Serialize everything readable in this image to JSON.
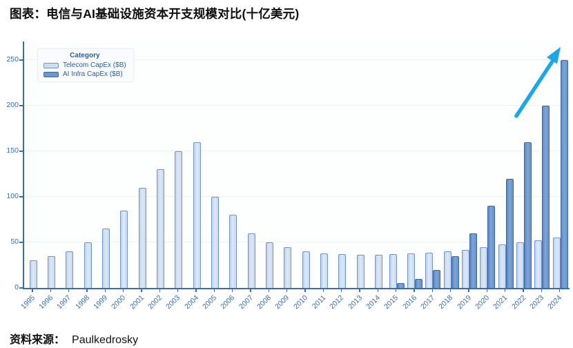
{
  "title": "图表：电信与AI基础设施资本开支规模对比(十亿美元)",
  "source": {
    "label": "资料来源：",
    "value": "Paulkedrosky"
  },
  "legend": {
    "title": "Category"
  },
  "chart_data": {
    "type": "bar",
    "title": "电信与AI基础设施资本开支规模对比(十亿美元)",
    "xlabel": "",
    "ylabel": "",
    "ylim": [
      0,
      250
    ],
    "yticks": [
      0,
      50,
      100,
      150,
      200,
      250
    ],
    "grid": true,
    "legend_position": "top-left",
    "categories": [
      "1995",
      "1996",
      "1997",
      "1998",
      "1999",
      "2000",
      "2001",
      "2002",
      "2003",
      "2004",
      "2005",
      "2006",
      "2007",
      "2008",
      "2009",
      "2010",
      "2011",
      "2012",
      "2013",
      "2014",
      "2015",
      "2016",
      "2017",
      "2018",
      "2019",
      "2020",
      "2021",
      "2022",
      "2023",
      "2024"
    ],
    "series": [
      {
        "name": "Telecom CapEx ($B)",
        "key": "telecom",
        "fill_color": "#cdddf2",
        "border_color": "#7094c6",
        "values": [
          30,
          35,
          40,
          50,
          65,
          85,
          110,
          130,
          150,
          160,
          100,
          80,
          60,
          50,
          45,
          40,
          38,
          37,
          36,
          36,
          37,
          38,
          39,
          40,
          42,
          45,
          48,
          50,
          52,
          55
        ]
      },
      {
        "name": "AI Infra CapEx ($B)",
        "key": "ai",
        "fill_color": "#6e96cc",
        "border_color": "#3c69a6",
        "values": [
          0,
          0,
          0,
          0,
          0,
          0,
          0,
          0,
          0,
          0,
          0,
          0,
          0,
          0,
          0,
          0,
          0,
          0,
          0,
          0,
          5,
          10,
          20,
          35,
          60,
          90,
          120,
          160,
          200,
          250
        ]
      }
    ],
    "annotations": [
      {
        "type": "arrow",
        "direction": "up-right",
        "color": "#1ba6e8",
        "from": [
          748,
          168
        ],
        "to": [
          812,
          68
        ]
      }
    ]
  }
}
